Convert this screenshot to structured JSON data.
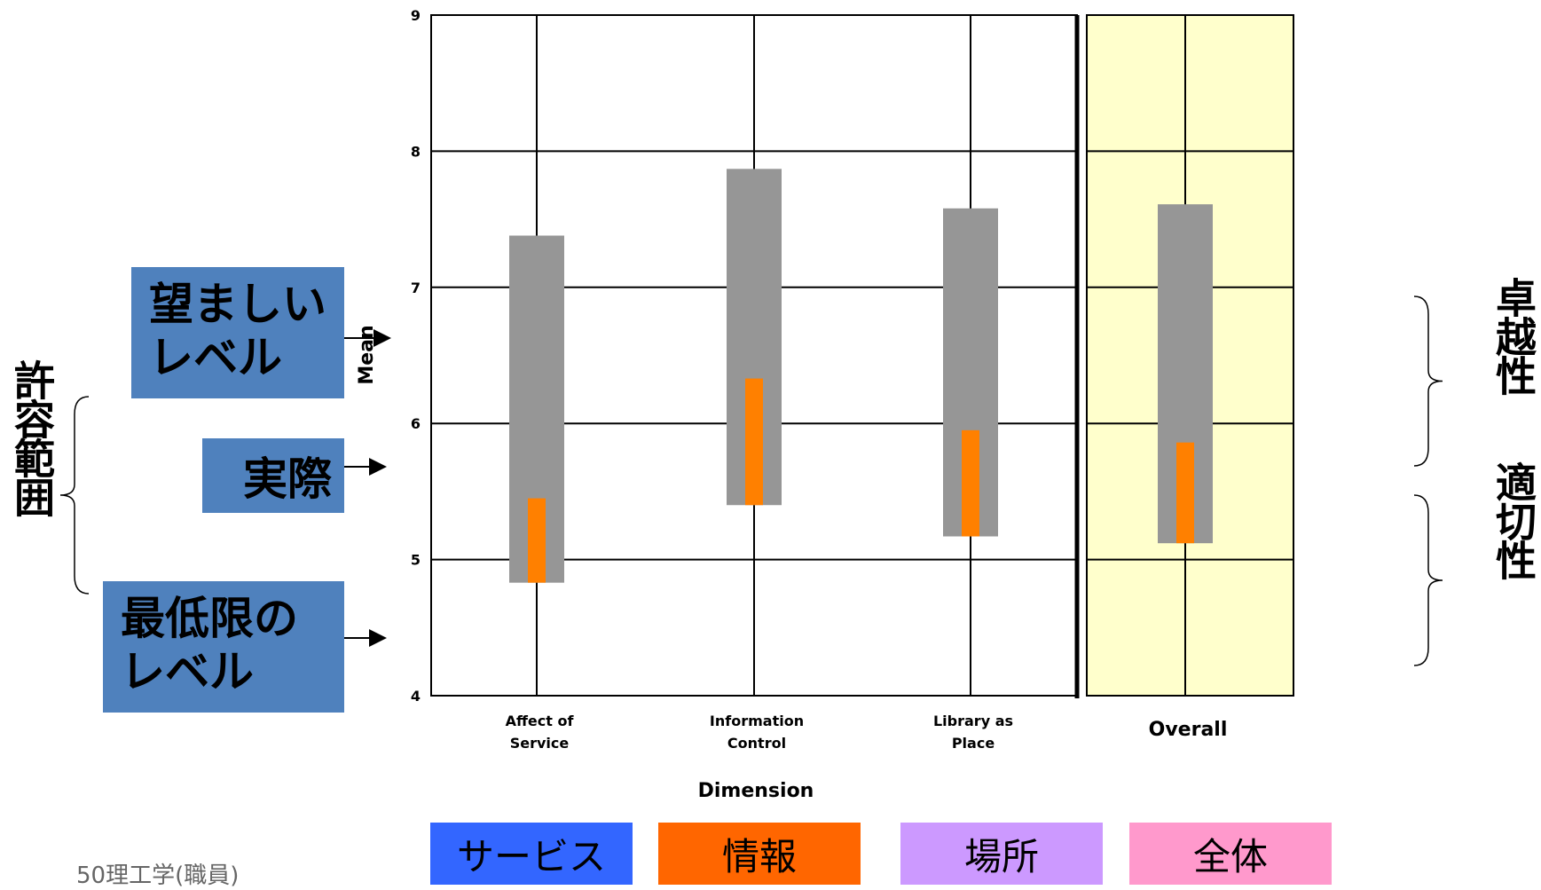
{
  "chart_data": {
    "type": "range-bar",
    "ylabel": "Mean",
    "xlabel": "Dimension",
    "ylim": [
      4,
      9
    ],
    "yticks": [
      4,
      5,
      6,
      7,
      8,
      9
    ],
    "grid": true,
    "categories": [
      {
        "label_lines": [
          "Affect of",
          "Service"
        ],
        "minimum": 4.83,
        "desired": 7.38,
        "perceived": 5.45
      },
      {
        "label_lines": [
          "Information",
          "Control"
        ],
        "minimum": 5.4,
        "desired": 7.87,
        "perceived": 6.33
      },
      {
        "label_lines": [
          "Library as",
          "Place"
        ],
        "minimum": 5.17,
        "desired": 7.58,
        "perceived": 5.95
      },
      {
        "label_lines": [
          "Overall"
        ],
        "minimum": 5.12,
        "desired": 7.61,
        "perceived": 5.86
      }
    ],
    "colors": {
      "range": "#969696",
      "perceived": "#ff8000",
      "overall_bg": "#ffffcc",
      "grid": "#000000"
    }
  },
  "annotations": {
    "desired_label": "望ましい\nレベル",
    "perceived_label": "実際",
    "minimum_label": "最低限の\nレベル",
    "tolerance_label": "許容範囲",
    "superiority_label": "卓越性",
    "adequacy_label": "適切性",
    "box_color": "#4f81bd"
  },
  "legend_boxes": [
    {
      "label": "サービス",
      "color": "#3366ff"
    },
    {
      "label": "情報",
      "color": "#ff6600"
    },
    {
      "label": "場所",
      "color": "#cc99ff"
    },
    {
      "label": "全体",
      "color": "#ff99cc"
    }
  ],
  "footer": "50理工学(職員)"
}
